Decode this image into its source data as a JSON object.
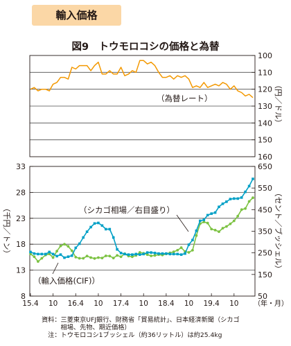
{
  "section_label": "輸入価格",
  "figure_title": "図9　トウモロコシの価格と為替",
  "notes": [
    "資料：三菱東京UFJ銀行、財務省「貿易統計」、日本経済新聞（シカゴ",
    "　　　相場、先物、期近価格）",
    "　注：トウモロコシ1ブッシェル（約36リットル）は約25.4kg"
  ],
  "chart_data": [
    {
      "type": "line",
      "title": "",
      "ylabel": "（円／ドル）",
      "ylim": [
        160,
        100
      ],
      "yticks": [
        "100",
        "110",
        "120",
        "130",
        "140",
        "150",
        "160"
      ],
      "inverted_axis": true,
      "grid": true,
      "series": [
        {
          "name": "（為替レート）",
          "color": "#f39800",
          "x": [
            "2015-04",
            "2015-05",
            "2015-06",
            "2015-07",
            "2015-08",
            "2015-09",
            "2015-10",
            "2015-11",
            "2015-12",
            "2016-01",
            "2016-02",
            "2016-03",
            "2016-04",
            "2016-05",
            "2016-06",
            "2016-07",
            "2016-08",
            "2016-09",
            "2016-10",
            "2016-11",
            "2016-12",
            "2017-01",
            "2017-02",
            "2017-03",
            "2017-04",
            "2017-05",
            "2017-06",
            "2017-07",
            "2017-08",
            "2017-09",
            "2017-10",
            "2017-11",
            "2017-12",
            "2018-01",
            "2018-02",
            "2018-03",
            "2018-04",
            "2018-05",
            "2018-06",
            "2018-07",
            "2018-08",
            "2018-09",
            "2018-10",
            "2018-11",
            "2018-12",
            "2019-01",
            "2019-02",
            "2019-03",
            "2019-04",
            "2019-05",
            "2019-06",
            "2019-07",
            "2019-08",
            "2019-09",
            "2019-10",
            "2019-11",
            "2019-12",
            "2020-01",
            "2020-02",
            "2020-03"
          ],
          "values": [
            120,
            119,
            121,
            120,
            120,
            121,
            117,
            116,
            113,
            113,
            114,
            107,
            108,
            106,
            106,
            106,
            109,
            106,
            104,
            111,
            111,
            109,
            111,
            111,
            107,
            112,
            111,
            109,
            110,
            103,
            103,
            105,
            104,
            106,
            110,
            113,
            113,
            112,
            114,
            112,
            113,
            112,
            114,
            119,
            118,
            119,
            116,
            119,
            118,
            117,
            118,
            116,
            117,
            120,
            118,
            121,
            122,
            124,
            123,
            125
          ]
        }
      ]
    },
    {
      "type": "line",
      "title": "",
      "xlabel": "（年・月）",
      "ylabel_left": "（千円／トン）",
      "ylabel_right": "（セント／ブッシェル）",
      "ylim_left": [
        8,
        33
      ],
      "ylim_right": [
        50,
        650
      ],
      "yticks_left": [
        "8",
        "13",
        "18",
        "23",
        "28",
        "33"
      ],
      "yticks_right": [
        "50",
        "150",
        "250",
        "350",
        "450",
        "550",
        "650"
      ],
      "xtick_labels": [
        "15.4",
        "10",
        "16.4",
        "10",
        "17.4",
        "10",
        "18.4",
        "10",
        "19.4",
        "10"
      ],
      "grid": true,
      "series": [
        {
          "name": "（輸入価格(CIF)）",
          "axis": "left",
          "color": "#00a0c6",
          "marker": "square",
          "x": [
            "2015-04",
            "2015-05",
            "2015-06",
            "2015-07",
            "2015-08",
            "2015-09",
            "2015-10",
            "2015-11",
            "2015-12",
            "2016-01",
            "2016-02",
            "2016-03",
            "2016-04",
            "2016-05",
            "2016-06",
            "2016-07",
            "2016-08",
            "2016-09",
            "2016-10",
            "2016-11",
            "2016-12",
            "2017-01",
            "2017-02",
            "2017-03",
            "2017-04",
            "2017-05",
            "2017-06",
            "2017-07",
            "2017-08",
            "2017-09",
            "2017-10",
            "2017-11",
            "2017-12",
            "2018-01",
            "2018-02",
            "2018-03",
            "2018-04",
            "2018-05",
            "2018-06",
            "2018-07",
            "2018-08",
            "2018-09",
            "2018-10",
            "2018-11",
            "2018-12",
            "2019-01",
            "2019-02",
            "2019-03",
            "2019-04",
            "2019-05",
            "2019-06",
            "2019-07",
            "2019-08",
            "2019-09",
            "2019-10",
            "2019-11",
            "2019-12",
            "2020-01",
            "2020-02",
            "2020-03"
          ],
          "values": [
            16.5,
            16.2,
            16.1,
            16.1,
            16.1,
            16.5,
            16.1,
            15.7,
            16,
            15.4,
            15.6,
            15.8,
            17.3,
            18.1,
            19.3,
            20.4,
            21.3,
            22,
            22.1,
            21.6,
            20.9,
            20.9,
            19.3,
            17,
            16.3,
            16.1,
            16,
            16,
            16.1,
            16,
            16.1,
            16.4,
            16.4,
            16.3,
            16.2,
            16.2,
            16.2,
            16.1,
            16.1,
            16.1,
            16,
            16.2,
            17.9,
            18.8,
            20.6,
            22.5,
            22.7,
            23.6,
            23.9,
            24.1,
            25.2,
            25.8,
            26.2,
            26.7,
            26.8,
            26.8,
            27,
            28.1,
            29.2,
            30.6
          ]
        },
        {
          "name": "（シカゴ相場／右目盛り）",
          "axis": "right",
          "color": "#7cc242",
          "marker": "circle",
          "x": [
            "2015-04",
            "2015-05",
            "2015-06",
            "2015-07",
            "2015-08",
            "2015-09",
            "2015-10",
            "2015-11",
            "2015-12",
            "2016-01",
            "2016-02",
            "2016-03",
            "2016-04",
            "2016-05",
            "2016-06",
            "2016-07",
            "2016-08",
            "2016-09",
            "2016-10",
            "2016-11",
            "2016-12",
            "2017-01",
            "2017-02",
            "2017-03",
            "2017-04",
            "2017-05",
            "2017-06",
            "2017-07",
            "2017-08",
            "2017-09",
            "2017-10",
            "2017-11",
            "2017-12",
            "2018-01",
            "2018-02",
            "2018-03",
            "2018-04",
            "2018-05",
            "2018-06",
            "2018-07",
            "2018-08",
            "2018-09",
            "2018-10",
            "2018-11",
            "2018-12",
            "2019-01",
            "2019-02",
            "2019-03",
            "2019-04",
            "2019-05",
            "2019-06",
            "2019-07",
            "2019-08",
            "2019-09",
            "2019-10",
            "2019-11",
            "2019-12",
            "2020-01",
            "2020-02",
            "2020-03"
          ],
          "values": [
            245,
            232,
            210,
            225,
            240,
            245,
            228,
            258,
            282,
            290,
            280,
            260,
            230,
            225,
            225,
            235,
            228,
            224,
            228,
            226,
            236,
            235,
            226,
            238,
            232,
            246,
            235,
            232,
            238,
            252,
            248,
            242,
            236,
            238,
            242,
            240,
            245,
            250,
            255,
            262,
            274,
            256,
            252,
            262,
            330,
            385,
            393,
            388,
            360,
            355,
            348,
            364,
            372,
            384,
            398,
            420,
            450,
            455,
            488,
            505
          ]
        }
      ]
    }
  ]
}
